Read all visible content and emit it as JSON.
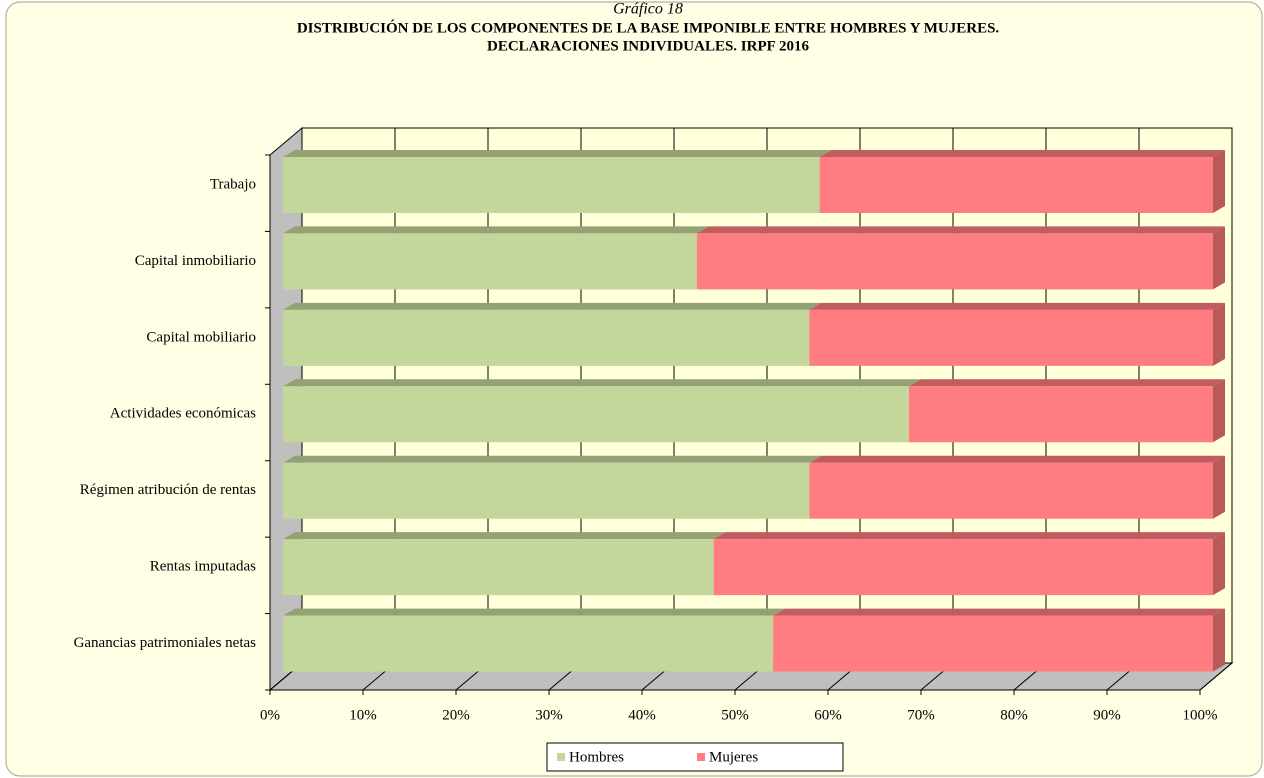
{
  "chart_data": {
    "type": "stacked_barh",
    "subtitle": "Gráfico 18",
    "title": [
      "DISTRIBUCIÓN DE LOS COMPONENTES  DE LA BASE IMPONIBLE ENTRE HOMBRES Y MUJERES.",
      "DECLARACIONES  INDIVIDUALES.  IRPF 2016"
    ],
    "categories": [
      "Trabajo",
      "Capital inmobiliario",
      "Capital mobiliario",
      "Actividades económicas",
      "Régimen atribución de rentas",
      "Rentas imputadas",
      "Ganancias patrimoniales netas"
    ],
    "series": [
      {
        "name": "Hombres",
        "color": "#c4d79b",
        "values": [
          57.7,
          44.5,
          56.6,
          67.3,
          56.6,
          46.3,
          52.7
        ]
      },
      {
        "name": "Mujeres",
        "color": "#ff7c80",
        "values": [
          42.3,
          55.5,
          43.4,
          32.7,
          43.4,
          53.7,
          47.3
        ]
      }
    ],
    "xlim": [
      0,
      100
    ],
    "xticks": [
      {
        "value": 0,
        "label": "0%"
      },
      {
        "value": 10,
        "label": "10%"
      },
      {
        "value": 20,
        "label": "20%"
      },
      {
        "value": 30,
        "label": "30%"
      },
      {
        "value": 40,
        "label": "40%"
      },
      {
        "value": 50,
        "label": "50%"
      },
      {
        "value": 60,
        "label": "60%"
      },
      {
        "value": 70,
        "label": "70%"
      },
      {
        "value": 80,
        "label": "80%"
      },
      {
        "value": 90,
        "label": "90%"
      },
      {
        "value": 100,
        "label": "100%"
      }
    ],
    "grid": true,
    "legend": "bottom"
  }
}
